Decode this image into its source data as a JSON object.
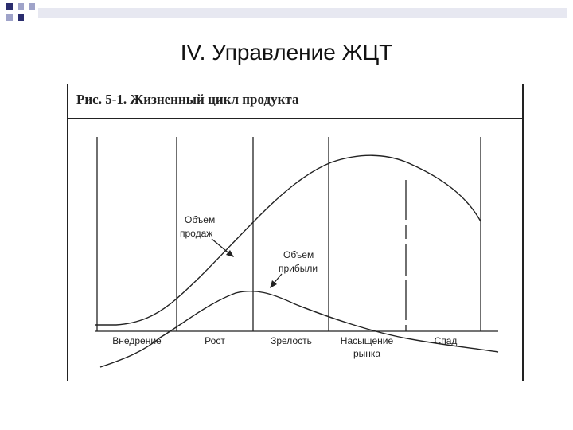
{
  "slide": {
    "title": "IV. Управление ЖЦТ"
  },
  "figure": {
    "caption": "Рис. 5-1. Жизненный цикл продукта",
    "curve_labels": {
      "sales_line1": "Объем",
      "sales_line2": "продаж",
      "profit_line1": "Объем",
      "profit_line2": "прибыли"
    },
    "stages": [
      {
        "line1": "Внедрение",
        "line2": ""
      },
      {
        "line1": "Рост",
        "line2": ""
      },
      {
        "line1": "Зрелость",
        "line2": ""
      },
      {
        "line1": "Насыщение",
        "line2": "рынка"
      },
      {
        "line1": "Спад",
        "line2": ""
      }
    ]
  },
  "colors": {
    "ink": "#222222",
    "deco_dark": "#2a2d6e",
    "deco_light": "#9fa3c9"
  }
}
